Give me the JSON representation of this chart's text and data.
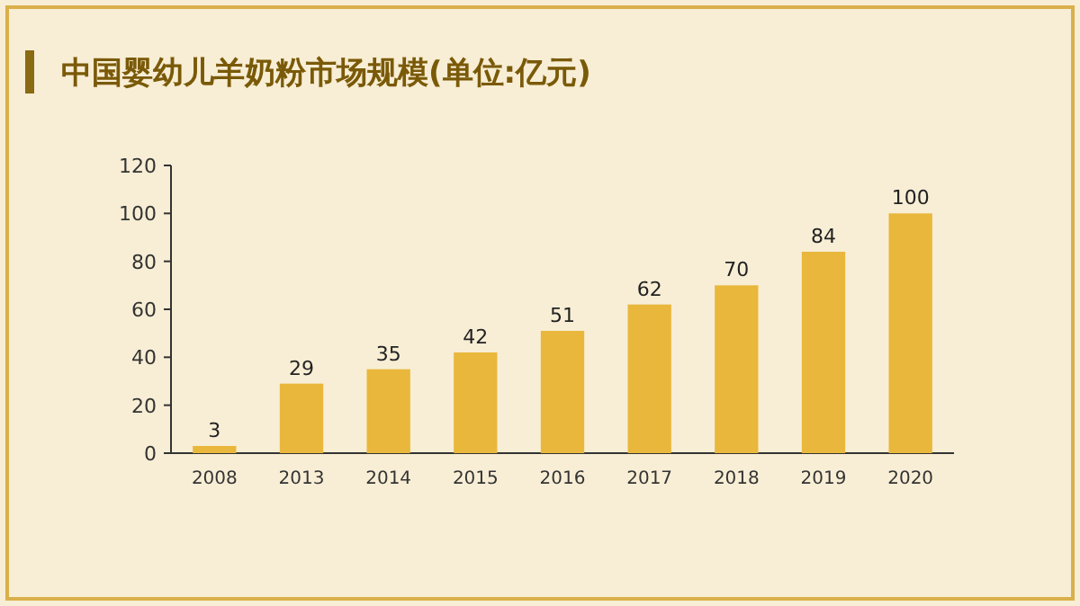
{
  "chart_data": {
    "type": "bar",
    "title": "中国婴幼儿羊奶粉市场规模(单位:亿元)",
    "categories": [
      "2008",
      "2013",
      "2014",
      "2015",
      "2016",
      "2017",
      "2018",
      "2019",
      "2020"
    ],
    "values": [
      3,
      29,
      35,
      42,
      51,
      62,
      70,
      84,
      100
    ],
    "color": "#e9b73c",
    "ylim": [
      0,
      120
    ],
    "yticks": [
      0,
      20,
      40,
      60,
      80,
      100,
      120
    ],
    "data_labels": true,
    "grid": false,
    "legend": false
  }
}
